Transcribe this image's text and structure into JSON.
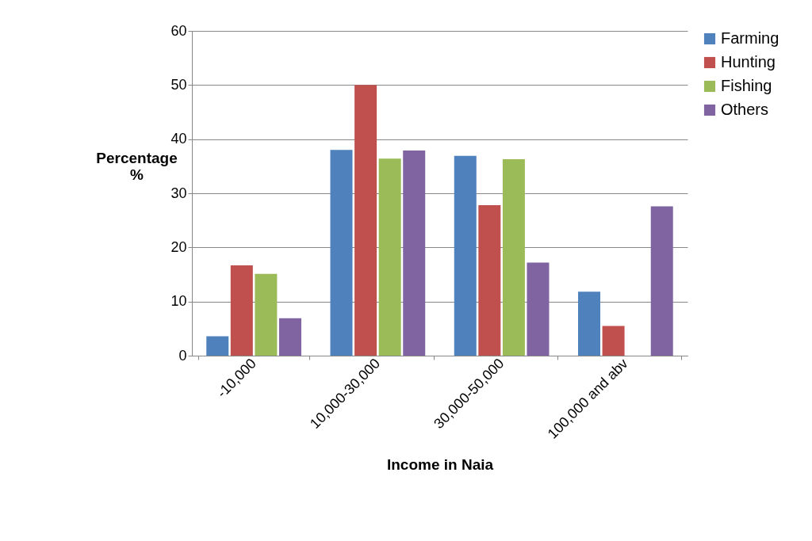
{
  "chart_data": {
    "type": "bar",
    "xlabel": "Income in Naia",
    "ylabel": "Percentage %",
    "categories": [
      "-10,000",
      "10,000-30,000",
      "30,000-50,000",
      "100,000 and abv"
    ],
    "series": [
      {
        "name": "Farming",
        "color": "#4f81bd",
        "values": [
          3.6,
          38.0,
          36.9,
          11.8
        ]
      },
      {
        "name": "Hunting",
        "color": "#c0504d",
        "values": [
          16.7,
          50.0,
          27.8,
          5.5
        ]
      },
      {
        "name": "Fishing",
        "color": "#9bbb59",
        "values": [
          15.1,
          36.4,
          36.3,
          null
        ]
      },
      {
        "name": "Others",
        "color": "#8064a2",
        "values": [
          6.9,
          37.9,
          17.2,
          27.6
        ]
      }
    ],
    "ylim": [
      0,
      60
    ],
    "yticks": [
      0,
      10,
      20,
      30,
      40,
      50,
      60
    ],
    "grid": "y",
    "legend": "right"
  }
}
